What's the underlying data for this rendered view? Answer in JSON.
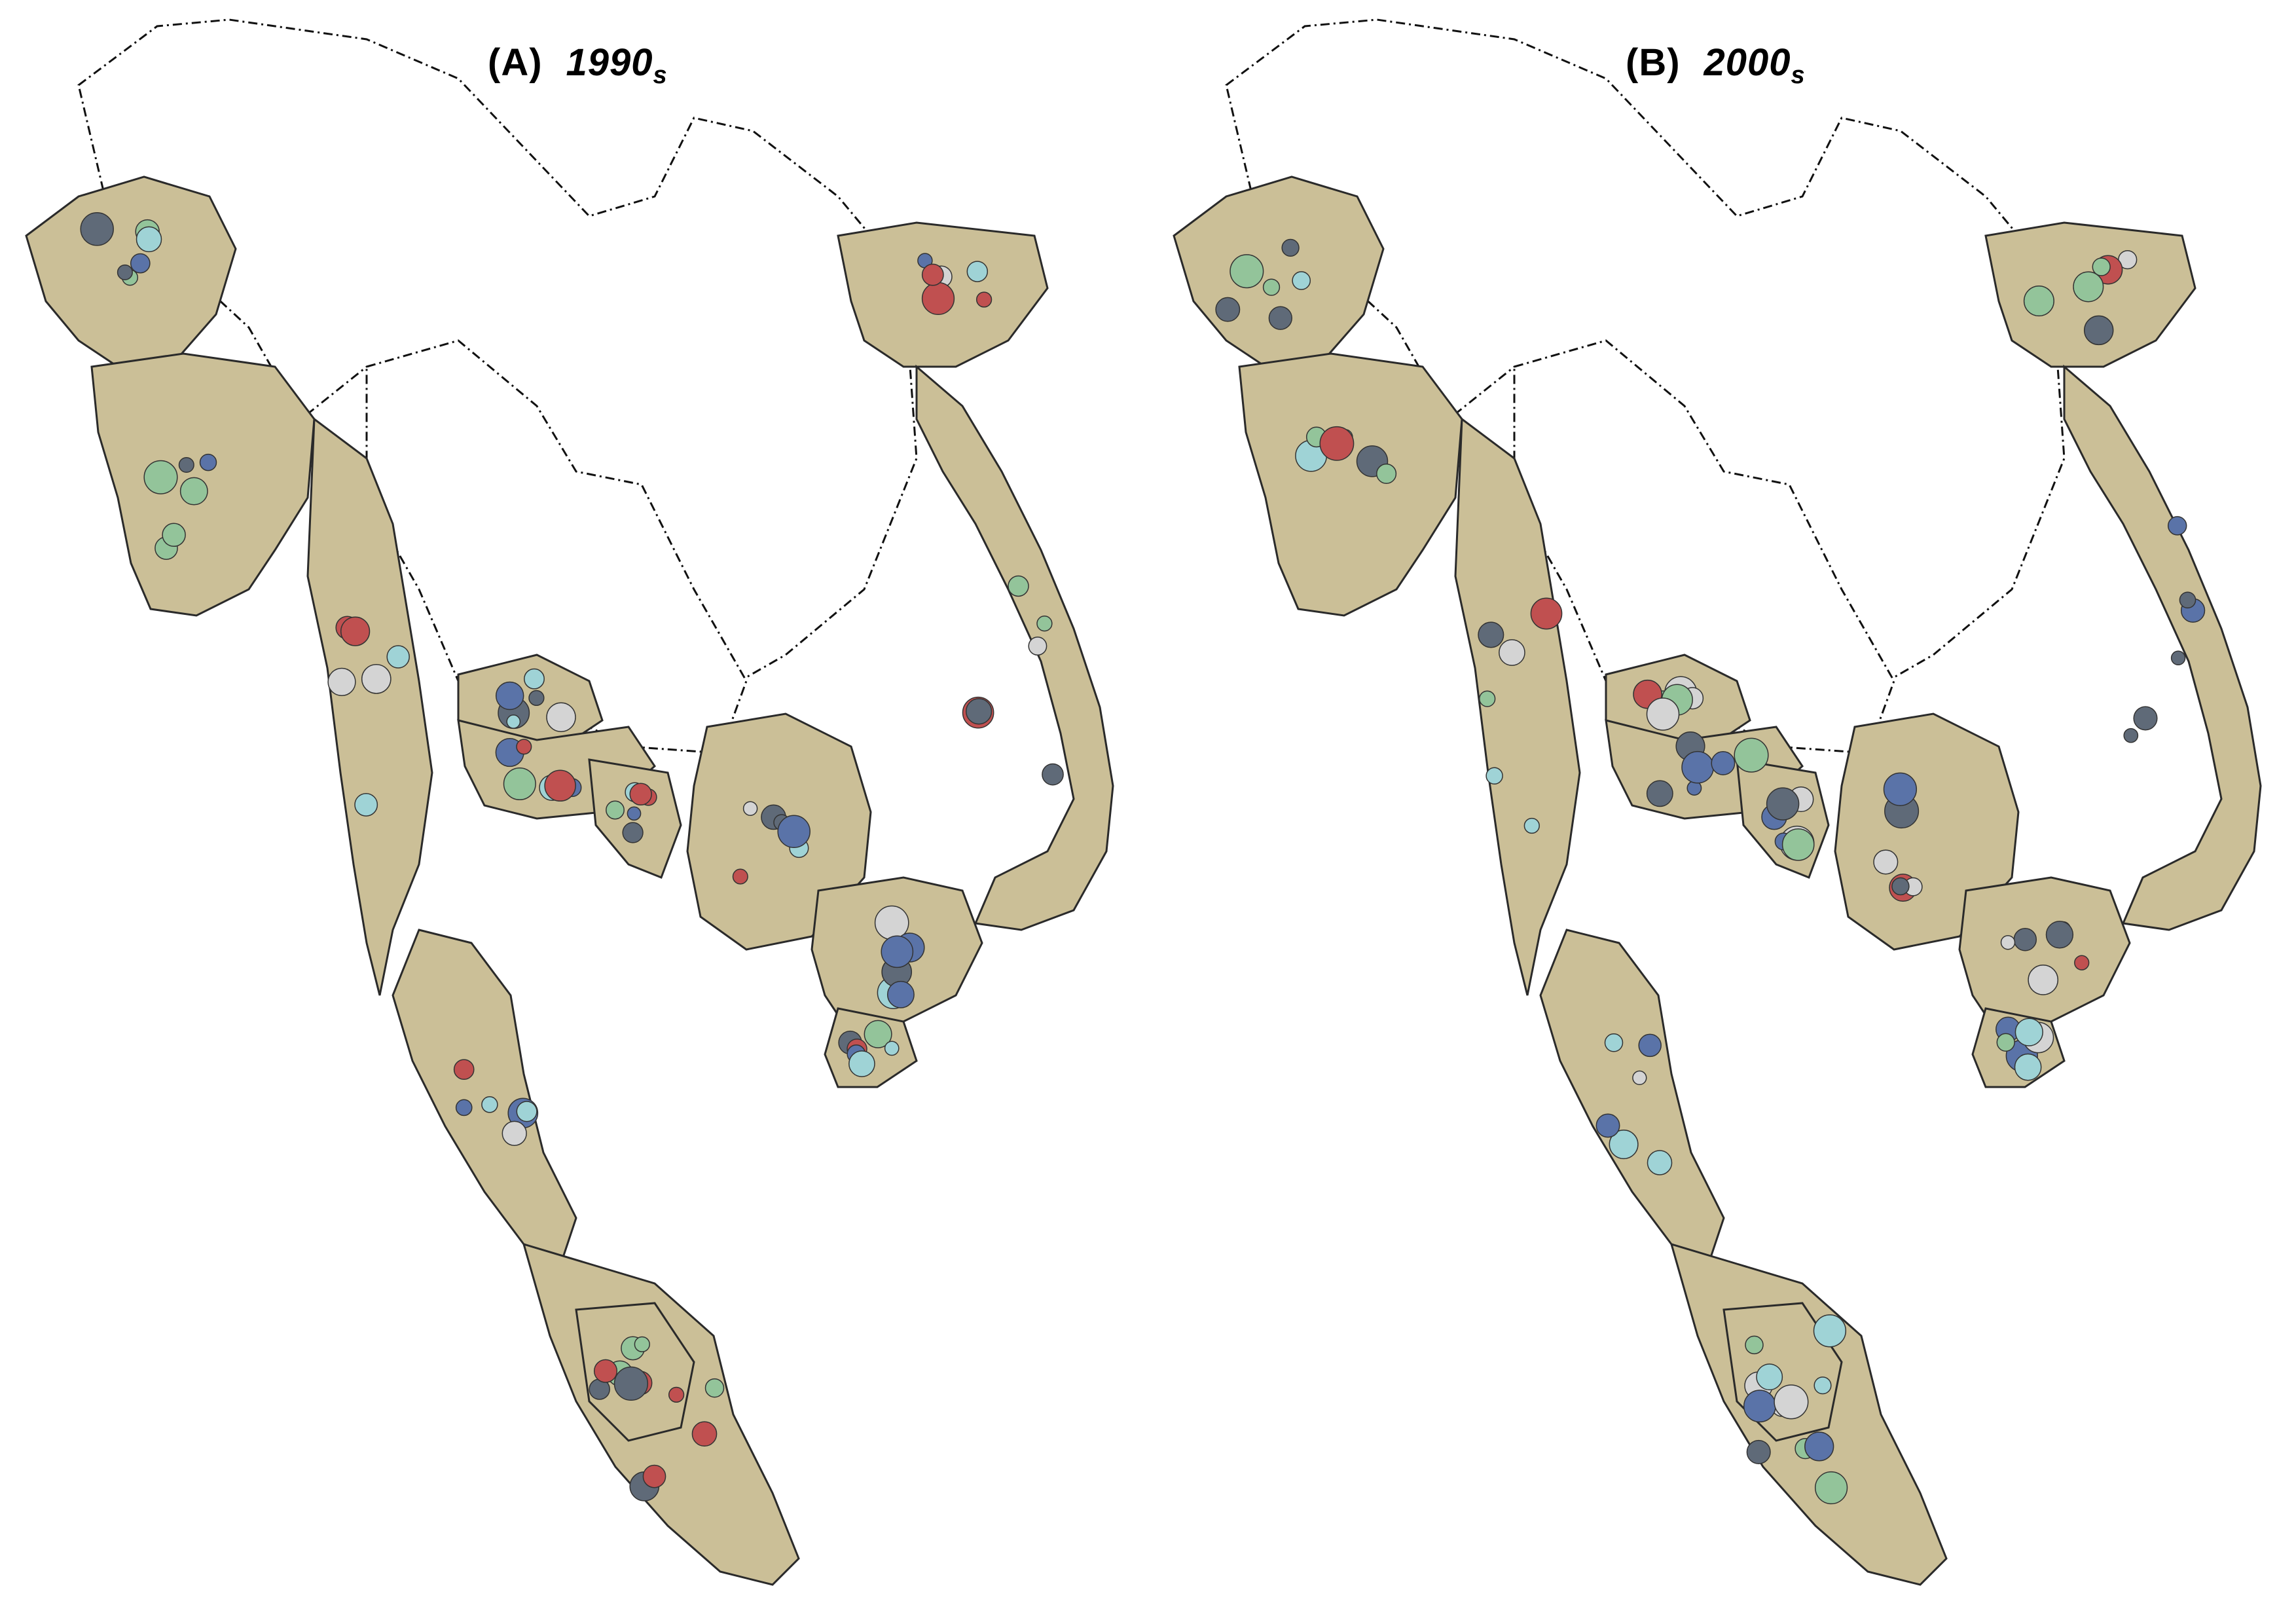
{
  "panels": [
    {
      "id": "A",
      "tag": "(A)",
      "period_main": "1990",
      "period_sub": "s",
      "fill": {
        "myanmar_north": "#d4d4d4",
        "myanmar_central": "#cbbf97",
        "myanmar_coast": "#cbbf97",
        "thai_north": "#cbbf97",
        "thai_central": "#c05050",
        "thai_east": "#cbbf97",
        "cambodia": "#cbbf97",
        "mekong_delta": "#c05050",
        "delta_tip": "#7a4a4f",
        "vn_north": "#cbbf97",
        "vn_coast": "#cbbf97",
        "thai_south": "#c05050",
        "malaysia": "#cbbf97",
        "malaysia_interior": "#d4d4d4"
      }
    },
    {
      "id": "B",
      "tag": "(B)",
      "period_main": "2000",
      "period_sub": "s",
      "fill": {
        "myanmar_north": "#d4d4d4",
        "myanmar_central": "#cbbf97",
        "myanmar_coast": "#cbbf97",
        "thai_north": "#d4d4d4",
        "thai_central": "#cbbf97",
        "thai_east": "#cbbf97",
        "cambodia": "#d4d4d4",
        "mekong_delta": "#cbbf97",
        "delta_tip": "#5f6a78",
        "vn_north": "#cbbf97",
        "vn_coast": "#cbbf97",
        "thai_south": "#cbbf97",
        "malaysia": "#cbbf97",
        "malaysia_interior": "#d4d4d4"
      }
    }
  ],
  "colors": {
    "tan": "#cbbf97",
    "red": "#c05050",
    "light_gray": "#d4d4d4",
    "green": "#93c49a",
    "cyan": "#9fd3d6",
    "blue": "#5a73a8",
    "slate": "#5f6a78",
    "white": "#ffffff"
  }
}
